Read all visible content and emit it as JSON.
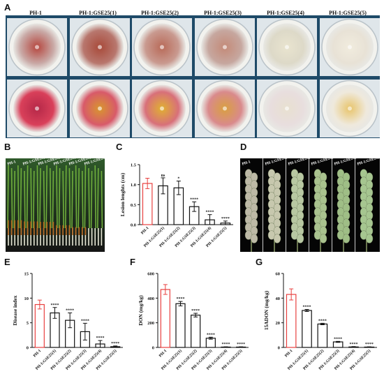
{
  "panels": {
    "A": "A",
    "B": "B",
    "C": "C",
    "D": "D",
    "E": "E",
    "F": "F",
    "G": "G"
  },
  "strains": [
    "PH-1",
    "PH-1:GSE25(1)",
    "PH-1:GSE25(2)",
    "PH-1:GSE25(3)",
    "PH-1:GSE25(4)",
    "PH-1:GSE25(5)"
  ],
  "panelA": {
    "top_row_colors": [
      "#c9a9a6",
      "#b8776e",
      "#c99a90",
      "#c6a79f",
      "#ddd9c8",
      "#e8e2d6"
    ],
    "top_center_colors": [
      "#b5463e",
      "#a84a3a",
      "#b86a58",
      "#c48a78",
      "#e9e4cf",
      "#f1ecde"
    ],
    "bottom_row_colors": [
      "#d9405a",
      "#d85a6a",
      "#d8707a",
      "#d98a8c",
      "#e8dede",
      "#efe9dc"
    ],
    "bottom_center_colors": [
      "#b52848",
      "#d8962e",
      "#e0b030",
      "#d9a040",
      "#e8e0d0",
      "#e8c46a"
    ]
  },
  "panelB": {
    "labels": [
      "PH-1",
      "PH-1:GSE25(1)",
      "PH-1:GSE25(2)",
      "PH-1:GSE25(3)",
      "PH-1:GSE25(4)",
      "PH-1:GSE25(5)"
    ]
  },
  "panelD": {
    "labels": [
      "PH-1",
      "PH-1:GSE25(1)",
      "PH-1:GSE25(2)",
      "PH-1:GSE25(3)",
      "PH-1:GSE25(4)",
      "PH-1:GSE25(5)"
    ]
  },
  "chart_data": [
    {
      "id": "C",
      "type": "bar",
      "categories": [
        "PH-1",
        "PH-1:GSE25(1)",
        "PH-1:GSE25(2)",
        "PH-1:GSE25(3)",
        "PH-1:GSE25(4)",
        "PH-1:GSE25(5)"
      ],
      "values": [
        1.03,
        0.97,
        0.92,
        0.45,
        0.12,
        0.04
      ],
      "errors": [
        0.13,
        0.2,
        0.17,
        0.12,
        0.13,
        0.05
      ],
      "significance": [
        "",
        "ns",
        "*",
        "****",
        "****",
        "****"
      ],
      "ylabel": "Lesion lenghts (cm)",
      "ylim": [
        0,
        1.5
      ],
      "yticks": [
        "0.0",
        "0.5",
        "1.0",
        "1.5"
      ],
      "colors": [
        "#e8403f",
        "#111111",
        "#111111",
        "#111111",
        "#111111",
        "#111111"
      ]
    },
    {
      "id": "E",
      "type": "bar",
      "categories": [
        "PH-1",
        "PH-1:GSE25(1)",
        "PH-1:GSE25(2)",
        "PH-1:GSE25(3)",
        "PH-1:GSE25(4)",
        "PH-1:GSE25(5)"
      ],
      "values": [
        8.7,
        7.0,
        5.5,
        3.2,
        0.7,
        0.15
      ],
      "errors": [
        0.9,
        1.1,
        1.5,
        1.7,
        0.7,
        0.15
      ],
      "significance": [
        "",
        "****",
        "****",
        "****",
        "****",
        "****"
      ],
      "ylabel": "Disease index",
      "ylim": [
        0,
        15
      ],
      "yticks": [
        "0",
        "5",
        "10",
        "15"
      ],
      "colors": [
        "#e8403f",
        "#111111",
        "#111111",
        "#111111",
        "#111111",
        "#111111"
      ]
    },
    {
      "id": "F",
      "type": "bar",
      "categories": [
        "PH-1",
        "PH-1:GSE25(1)",
        "PH-1:GSE25(2)",
        "PH-1:GSE25(3)",
        "PH-1:GSE25(4)",
        "PH-1:GSE25(5)"
      ],
      "values": [
        470,
        355,
        262,
        75,
        3,
        3
      ],
      "errors": [
        40,
        18,
        15,
        8,
        2,
        2
      ],
      "significance": [
        "",
        "****",
        "****",
        "****",
        "****",
        "****"
      ],
      "ylabel": "DON (mg/kg)",
      "ylim": [
        0,
        600
      ],
      "yticks": [
        "0",
        "200",
        "400",
        "600"
      ],
      "colors": [
        "#e8403f",
        "#111111",
        "#111111",
        "#111111",
        "#111111",
        "#111111"
      ]
    },
    {
      "id": "G",
      "type": "bar",
      "categories": [
        "PH-1",
        "PH-1:GSE25(1)",
        "PH-1:GSE25(2)",
        "PH-1:GSE25(3)",
        "PH-1:GSE25(4)",
        "PH-1:GSE25(5)"
      ],
      "values": [
        43,
        30,
        19,
        4.5,
        0.4,
        0.3
      ],
      "errors": [
        4.5,
        0.8,
        0.6,
        0.4,
        0.3,
        0.2
      ],
      "significance": [
        "",
        "****",
        "****",
        "****",
        "****",
        "****"
      ],
      "ylabel": "15ADON (mg/kg)",
      "ylim": [
        0,
        60
      ],
      "yticks": [
        "0",
        "20",
        "40",
        "60"
      ],
      "colors": [
        "#e8403f",
        "#111111",
        "#111111",
        "#111111",
        "#111111",
        "#111111"
      ]
    }
  ]
}
